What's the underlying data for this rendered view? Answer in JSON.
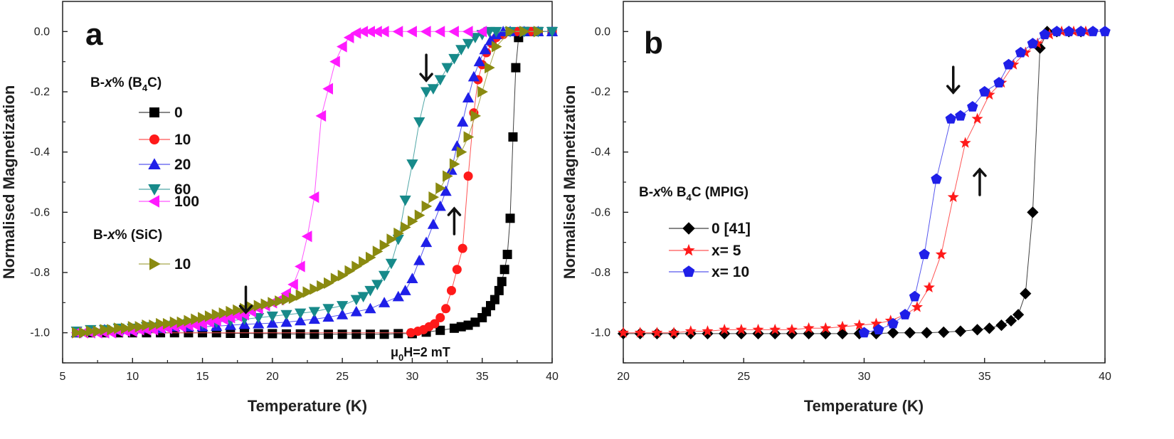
{
  "chart_data": [
    {
      "id": "a",
      "type": "scatter",
      "panel_label": "a",
      "title": "",
      "xlabel": "Temperature (K)",
      "ylabel": "Normalised Magnetization",
      "xlim": [
        5,
        40
      ],
      "ylim": [
        -1.1,
        0.1
      ],
      "xticks": [
        5,
        10,
        15,
        20,
        25,
        30,
        35,
        40
      ],
      "xtick_labels": [
        "5",
        "10",
        "15",
        "20",
        "25",
        "30",
        "35",
        "40"
      ],
      "yticks": [
        0.0,
        -0.2,
        -0.4,
        -0.6,
        -0.8,
        -1.0
      ],
      "ytick_labels": [
        "0.0",
        "-0.2",
        "-0.4",
        "-0.6",
        "-0.8",
        "-1.0"
      ],
      "legend_groups": [
        {
          "title_pre": "B-",
          "title_italic": "x",
          "title_mid": "% (B",
          "title_sub": "4",
          "title_post": "C)"
        },
        {
          "title_pre": "B-",
          "title_italic": "x",
          "title_mid": "% (SiC)",
          "title_sub": "",
          "title_post": ""
        }
      ],
      "annotation": {
        "pre": "μ",
        "sub": "0",
        "post": "H=2 mT"
      },
      "arrows": [
        {
          "x": 31.0,
          "y": -0.12,
          "dir": "down"
        },
        {
          "x": 18.1,
          "y": -0.89,
          "dir": "down"
        },
        {
          "x": 33.0,
          "y": -0.63,
          "dir": "up"
        }
      ],
      "series": [
        {
          "name": "0",
          "group": 0,
          "color": "#000000",
          "marker": "square",
          "x": [
            6,
            7,
            8,
            9,
            10,
            11,
            12,
            13,
            14,
            15,
            16,
            17,
            18,
            19,
            20,
            21,
            22,
            23,
            24,
            25,
            26,
            27,
            28,
            29,
            30,
            31,
            32,
            33,
            33.5,
            34,
            34.5,
            35,
            35.3,
            35.6,
            35.9,
            36.2,
            36.4,
            36.6,
            36.8,
            37.0,
            37.2,
            37.4,
            37.6,
            37.8,
            38,
            38.5,
            39,
            40
          ],
          "y": [
            -1,
            -1,
            -1,
            -1,
            -1,
            -1,
            -1,
            -1,
            -1,
            -1,
            -1,
            -1.002,
            -1.002,
            -1.003,
            -1.003,
            -1.004,
            -1.004,
            -1.005,
            -1.005,
            -1.005,
            -1.005,
            -1.005,
            -1.005,
            -1.003,
            -1.003,
            -0.998,
            -0.992,
            -0.985,
            -0.98,
            -0.975,
            -0.965,
            -0.95,
            -0.93,
            -0.91,
            -0.89,
            -0.86,
            -0.83,
            -0.79,
            -0.74,
            -0.62,
            -0.35,
            -0.12,
            -0.02,
            0,
            0,
            0,
            0,
            0
          ]
        },
        {
          "name": "10",
          "group": 0,
          "color": "#ff1a1a",
          "marker": "circle",
          "x": [
            29.9,
            30.4,
            30.8,
            31.2,
            31.6,
            32.0,
            32.4,
            32.8,
            33.2,
            33.6,
            34.0,
            34.4,
            34.7,
            35.0,
            35.3,
            35.7,
            36.0,
            36.5,
            37.0,
            37.5,
            38,
            38.5,
            39,
            40
          ],
          "y": [
            -1.0,
            -0.995,
            -0.99,
            -0.98,
            -0.97,
            -0.95,
            -0.92,
            -0.86,
            -0.79,
            -0.72,
            -0.48,
            -0.27,
            -0.16,
            -0.11,
            -0.07,
            -0.04,
            -0.02,
            -0.01,
            0,
            0,
            0,
            0,
            0,
            0
          ],
          "line_x": [
            6,
            10,
            15,
            20,
            25,
            29.9
          ],
          "line_y": [
            -1,
            -1,
            -1,
            -1,
            -1,
            -1
          ]
        },
        {
          "name": "20",
          "group": 0,
          "color": "#1f1fe8",
          "marker": "triangle-up",
          "x": [
            6,
            7,
            8,
            9,
            10,
            11,
            12,
            13,
            14,
            15,
            16,
            17,
            18,
            19,
            20,
            21,
            22,
            23,
            24,
            25,
            26,
            27,
            28,
            29,
            29.5,
            30,
            30.5,
            31,
            31.5,
            32,
            32.4,
            32.8,
            33.2,
            33.6,
            34,
            34.4,
            34.8,
            35.2,
            35.6,
            36,
            36.5,
            37,
            38,
            39,
            40
          ],
          "y": [
            -1,
            -0.995,
            -0.99,
            -0.99,
            -0.99,
            -0.985,
            -0.985,
            -0.98,
            -0.98,
            -0.98,
            -0.978,
            -0.975,
            -0.972,
            -0.97,
            -0.968,
            -0.965,
            -0.96,
            -0.955,
            -0.948,
            -0.94,
            -0.93,
            -0.92,
            -0.9,
            -0.88,
            -0.86,
            -0.82,
            -0.76,
            -0.7,
            -0.64,
            -0.58,
            -0.53,
            -0.46,
            -0.38,
            -0.3,
            -0.22,
            -0.15,
            -0.1,
            -0.06,
            -0.03,
            -0.01,
            0,
            0,
            0,
            0,
            0
          ]
        },
        {
          "name": "60",
          "group": 0,
          "color": "#178a8a",
          "marker": "triangle-down",
          "x": [
            6,
            7,
            8,
            9,
            10,
            11,
            12,
            13,
            14,
            15,
            16,
            17,
            18,
            19,
            20,
            21,
            22,
            23,
            24,
            25,
            26,
            26.5,
            27,
            27.5,
            28,
            28.5,
            29,
            29.5,
            30,
            30.5,
            31,
            31.5,
            32,
            32.5,
            33,
            33.5,
            34,
            34.5,
            35,
            35.5,
            36,
            37,
            38,
            39,
            40
          ],
          "y": [
            -0.995,
            -0.99,
            -0.99,
            -0.985,
            -0.985,
            -0.98,
            -0.98,
            -0.975,
            -0.97,
            -0.97,
            -0.965,
            -0.96,
            -0.955,
            -0.95,
            -0.945,
            -0.94,
            -0.935,
            -0.93,
            -0.92,
            -0.91,
            -0.89,
            -0.88,
            -0.86,
            -0.84,
            -0.81,
            -0.77,
            -0.69,
            -0.56,
            -0.44,
            -0.3,
            -0.2,
            -0.19,
            -0.16,
            -0.12,
            -0.09,
            -0.06,
            -0.04,
            -0.02,
            -0.01,
            0,
            0,
            0,
            0,
            0,
            0
          ]
        },
        {
          "name": "100",
          "group": 0,
          "color": "#ff1aff",
          "marker": "triangle-left",
          "x": [
            6,
            6.5,
            7,
            7.5,
            8,
            8.5,
            9,
            9.5,
            10,
            10.5,
            11,
            11.5,
            12,
            12.5,
            13,
            13.5,
            14,
            14.5,
            15,
            15.5,
            16,
            16.5,
            17,
            17.5,
            18,
            18.5,
            19,
            19.5,
            20,
            20.5,
            21,
            21.5,
            22,
            22.5,
            23,
            23.5,
            24,
            24.5,
            25,
            25.5,
            26,
            26.5,
            27,
            27.5,
            28,
            29,
            30,
            31,
            32,
            33,
            34,
            35
          ],
          "y": [
            -1,
            -1,
            -1,
            -1,
            -1,
            -1,
            -0.995,
            -0.995,
            -0.995,
            -0.99,
            -0.99,
            -0.99,
            -0.985,
            -0.985,
            -0.98,
            -0.98,
            -0.975,
            -0.975,
            -0.97,
            -0.965,
            -0.96,
            -0.955,
            -0.95,
            -0.945,
            -0.94,
            -0.93,
            -0.92,
            -0.91,
            -0.9,
            -0.89,
            -0.87,
            -0.84,
            -0.78,
            -0.68,
            -0.55,
            -0.28,
            -0.19,
            -0.1,
            -0.05,
            -0.02,
            -0.005,
            0,
            0,
            0,
            0,
            0,
            0,
            0,
            0,
            0,
            0,
            0
          ]
        },
        {
          "name": "10",
          "group": 1,
          "color": "#8a8a10",
          "marker": "triangle-right",
          "x": [
            6,
            6.5,
            7,
            7.5,
            8,
            8.5,
            9,
            9.5,
            10,
            10.5,
            11,
            11.5,
            12,
            12.5,
            13,
            13.5,
            14,
            14.5,
            15,
            15.5,
            16,
            16.5,
            17,
            17.5,
            18,
            18.5,
            19,
            19.5,
            20,
            20.5,
            21,
            21.5,
            22,
            22.5,
            23,
            23.5,
            24,
            24.5,
            25,
            25.5,
            26,
            26.5,
            27,
            27.5,
            28,
            28.5,
            29,
            29.5,
            30,
            30.5,
            31,
            31.5,
            32,
            32.5,
            33,
            33.5,
            34,
            34.5,
            35,
            35.5,
            36,
            37,
            38,
            39
          ],
          "y": [
            -1,
            -1,
            -0.995,
            -0.995,
            -0.99,
            -0.99,
            -0.985,
            -0.985,
            -0.98,
            -0.98,
            -0.975,
            -0.975,
            -0.97,
            -0.97,
            -0.965,
            -0.965,
            -0.96,
            -0.955,
            -0.95,
            -0.945,
            -0.94,
            -0.935,
            -0.93,
            -0.925,
            -0.92,
            -0.915,
            -0.91,
            -0.905,
            -0.9,
            -0.895,
            -0.89,
            -0.885,
            -0.875,
            -0.865,
            -0.855,
            -0.845,
            -0.835,
            -0.82,
            -0.81,
            -0.795,
            -0.78,
            -0.765,
            -0.75,
            -0.73,
            -0.71,
            -0.69,
            -0.67,
            -0.65,
            -0.63,
            -0.61,
            -0.58,
            -0.55,
            -0.52,
            -0.48,
            -0.44,
            -0.4,
            -0.35,
            -0.28,
            -0.2,
            -0.12,
            -0.05,
            0,
            0,
            0
          ]
        }
      ]
    },
    {
      "id": "b",
      "type": "scatter",
      "panel_label": "b",
      "title": "",
      "xlabel": "Temperature (K)",
      "ylabel": "Normalised Magnetization",
      "xlim": [
        20,
        40
      ],
      "ylim": [
        -1.1,
        0.1
      ],
      "xticks": [
        20,
        25,
        30,
        35,
        40
      ],
      "xtick_labels": [
        "20",
        "25",
        "30",
        "35",
        "40"
      ],
      "yticks": [
        0.0,
        -0.2,
        -0.4,
        -0.6,
        -0.8,
        -1.0
      ],
      "ytick_labels": [
        "0.0",
        "-0.2",
        "-0.4",
        "-0.6",
        "-0.8",
        "-1.0"
      ],
      "legend_groups": [
        {
          "title_pre": "B-",
          "title_italic": "x",
          "title_mid": "% B",
          "title_sub": "4",
          "title_post": "C (MPIG)"
        }
      ],
      "arrows": [
        {
          "x": 33.7,
          "y": -0.16,
          "dir": "down"
        },
        {
          "x": 34.8,
          "y": -0.5,
          "dir": "up"
        }
      ],
      "series": [
        {
          "name": "0 [41]",
          "group": 0,
          "color": "#000000",
          "marker": "diamond",
          "x": [
            20,
            20.7,
            21.4,
            22.1,
            22.8,
            23.5,
            24.2,
            24.9,
            25.6,
            26.3,
            27,
            27.7,
            28.4,
            29.1,
            29.8,
            30.5,
            31.2,
            31.9,
            32.6,
            33.3,
            34,
            34.7,
            35.2,
            35.7,
            36.1,
            36.4,
            36.7,
            37.0,
            37.3,
            37.6,
            38,
            38.5,
            39
          ],
          "y": [
            -1.003,
            -1.003,
            -1.003,
            -1.003,
            -1.003,
            -1.003,
            -1.003,
            -1.003,
            -1.003,
            -1.003,
            -1.003,
            -1.003,
            -1.003,
            -1.003,
            -1.003,
            -1.003,
            -1.0,
            -1.0,
            -1.0,
            -0.998,
            -0.995,
            -0.99,
            -0.985,
            -0.975,
            -0.96,
            -0.94,
            -0.87,
            -0.6,
            -0.055,
            0,
            0,
            0,
            0
          ]
        },
        {
          "name": "x= 5",
          "group": 0,
          "color": "#ff1a1a",
          "marker": "star",
          "x": [
            20,
            20.7,
            21.4,
            22.1,
            22.8,
            23.5,
            24.2,
            24.9,
            25.6,
            26.3,
            27,
            27.7,
            28.4,
            29.1,
            29.8,
            30.5,
            31.1,
            31.7,
            32.2,
            32.7,
            33.2,
            33.7,
            34.2,
            34.7,
            35.2,
            35.7,
            36.2,
            36.7,
            37.2,
            37.7,
            38.2,
            38.7,
            39.2,
            40
          ],
          "y": [
            -1.0,
            -1.0,
            -1.0,
            -1.0,
            -0.995,
            -0.995,
            -0.99,
            -0.99,
            -0.99,
            -0.99,
            -0.99,
            -0.985,
            -0.985,
            -0.98,
            -0.975,
            -0.97,
            -0.96,
            -0.94,
            -0.915,
            -0.85,
            -0.74,
            -0.55,
            -0.37,
            -0.29,
            -0.21,
            -0.17,
            -0.11,
            -0.07,
            -0.04,
            -0.01,
            0,
            0,
            0,
            0
          ]
        },
        {
          "name": "x= 10",
          "group": 0,
          "color": "#1f1fe8",
          "marker": "pentagon",
          "x": [
            30,
            30.6,
            31.2,
            31.7,
            32.1,
            32.5,
            33.0,
            33.6,
            34.0,
            34.5,
            35.0,
            35.6,
            36.0,
            36.5,
            37.0,
            37.5,
            38.0,
            38.5,
            39.0,
            39.5,
            40
          ],
          "y": [
            -1.0,
            -0.99,
            -0.97,
            -0.94,
            -0.88,
            -0.74,
            -0.49,
            -0.29,
            -0.28,
            -0.25,
            -0.2,
            -0.17,
            -0.11,
            -0.07,
            -0.04,
            -0.01,
            0,
            0,
            0,
            0,
            0
          ]
        }
      ]
    }
  ]
}
